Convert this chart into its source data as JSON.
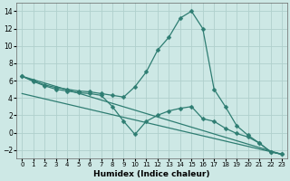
{
  "title": "",
  "xlabel": "Humidex (Indice chaleur)",
  "ylabel": "",
  "background_color": "#cde8e5",
  "grid_color": "#b0d0cc",
  "line_color": "#2e7d72",
  "xlim": [
    -0.5,
    23.5
  ],
  "ylim": [
    -3.0,
    15.0
  ],
  "xticks": [
    0,
    1,
    2,
    3,
    4,
    5,
    6,
    7,
    8,
    9,
    10,
    11,
    12,
    13,
    14,
    15,
    16,
    17,
    18,
    19,
    20,
    21,
    22,
    23
  ],
  "yticks": [
    -2,
    0,
    2,
    4,
    6,
    8,
    10,
    12,
    14
  ],
  "series": [
    {
      "x": [
        0,
        1,
        2,
        3,
        4,
        5,
        6,
        7,
        8,
        9,
        10,
        11,
        12,
        13,
        14,
        15,
        16,
        17,
        18,
        19,
        20,
        21,
        22,
        23
      ],
      "y": [
        6.5,
        6.0,
        5.5,
        5.2,
        5.0,
        4.8,
        4.7,
        4.5,
        4.3,
        4.1,
        5.3,
        7.0,
        9.5,
        11.0,
        13.2,
        14.0,
        12.0,
        5.0,
        3.0,
        0.8,
        -0.3,
        -1.2,
        -2.2,
        -2.5
      ],
      "marker": "D",
      "markersize": 2.5,
      "linewidth": 0.9
    },
    {
      "x": [
        0,
        1,
        2,
        3,
        4,
        5,
        6,
        7,
        8,
        9,
        10,
        11,
        12,
        13,
        14,
        15,
        16,
        17,
        18,
        19,
        20,
        21,
        22,
        23
      ],
      "y": [
        6.5,
        5.9,
        5.4,
        5.0,
        4.8,
        4.6,
        4.5,
        4.3,
        3.0,
        1.3,
        -0.2,
        1.3,
        2.0,
        2.5,
        2.8,
        3.0,
        1.6,
        1.3,
        0.5,
        -0.1,
        -0.5,
        -1.2,
        -2.2,
        -2.5
      ],
      "marker": "D",
      "markersize": 2.5,
      "linewidth": 0.9
    },
    {
      "x": [
        0,
        23
      ],
      "y": [
        6.5,
        -2.5
      ],
      "marker": null,
      "markersize": 0,
      "linewidth": 0.9
    },
    {
      "x": [
        0,
        23
      ],
      "y": [
        4.5,
        -2.5
      ],
      "marker": null,
      "markersize": 0,
      "linewidth": 0.9
    }
  ]
}
